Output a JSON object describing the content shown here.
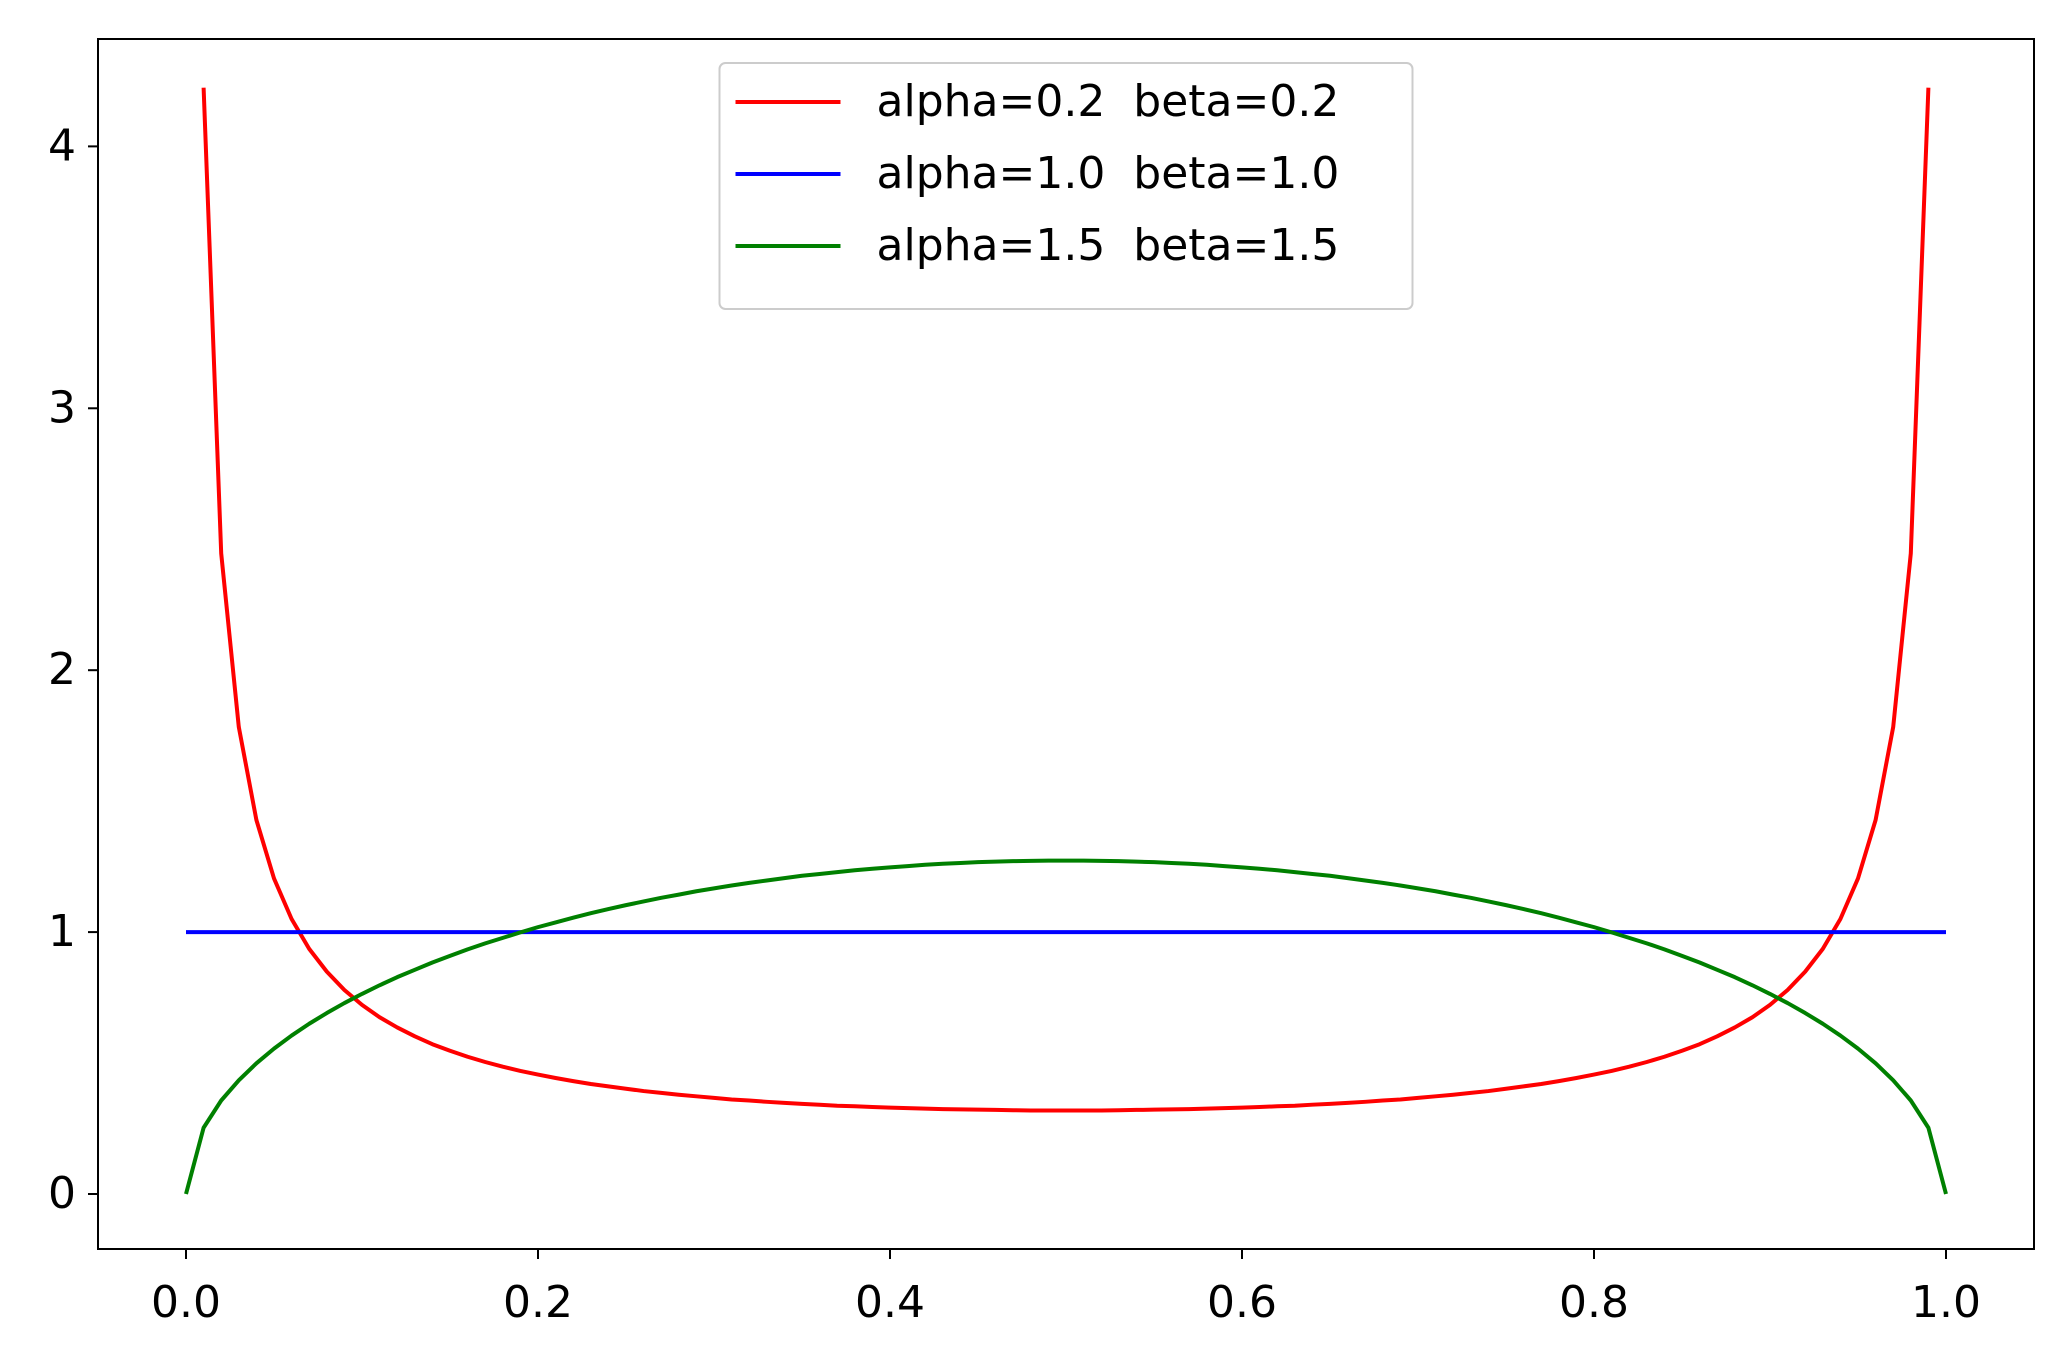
{
  "chart_data": {
    "type": "line",
    "x": [
      0,
      0.01,
      0.02,
      0.03,
      0.04,
      0.05,
      0.06,
      0.07,
      0.08,
      0.09,
      0.1,
      0.11,
      0.12,
      0.13,
      0.14,
      0.15,
      0.16,
      0.17,
      0.18,
      0.19,
      0.2,
      0.21,
      0.22,
      0.23,
      0.24,
      0.25,
      0.26,
      0.27,
      0.28,
      0.29,
      0.3,
      0.31,
      0.32,
      0.33,
      0.34,
      0.35,
      0.36,
      0.37,
      0.38,
      0.39,
      0.4,
      0.41,
      0.42,
      0.43,
      0.44,
      0.45,
      0.46,
      0.47,
      0.48,
      0.49,
      0.5,
      0.51,
      0.52,
      0.53,
      0.54,
      0.55,
      0.56,
      0.57,
      0.58,
      0.59,
      0.6,
      0.61,
      0.62,
      0.63,
      0.64,
      0.65,
      0.66,
      0.67,
      0.68,
      0.69,
      0.7,
      0.71,
      0.72,
      0.73,
      0.74,
      0.75,
      0.76,
      0.77,
      0.78,
      0.79,
      0.8,
      0.81,
      0.82,
      0.83,
      0.84,
      0.85,
      0.86,
      0.87,
      0.88,
      0.89,
      0.9,
      0.91,
      0.92,
      0.93,
      0.94,
      0.95,
      0.96,
      0.97,
      0.98,
      0.99,
      1
    ],
    "series": [
      {
        "name": "alpha=0.2  beta=0.2",
        "color": "#ff0000",
        "values": [
          null,
          4.224,
          2.446,
          1.783,
          1.428,
          1.205,
          1.05,
          0.936,
          0.849,
          0.779,
          0.722,
          0.675,
          0.636,
          0.602,
          0.572,
          0.547,
          0.524,
          0.504,
          0.486,
          0.47,
          0.456,
          0.443,
          0.431,
          0.42,
          0.411,
          0.402,
          0.393,
          0.386,
          0.379,
          0.373,
          0.367,
          0.361,
          0.357,
          0.352,
          0.348,
          0.344,
          0.341,
          0.337,
          0.335,
          0.332,
          0.33,
          0.328,
          0.326,
          0.324,
          0.323,
          0.322,
          0.321,
          0.32,
          0.319,
          0.319,
          0.319,
          0.319,
          0.319,
          0.32,
          0.321,
          0.322,
          0.323,
          0.324,
          0.326,
          0.328,
          0.33,
          0.332,
          0.335,
          0.337,
          0.341,
          0.344,
          0.348,
          0.352,
          0.357,
          0.361,
          0.367,
          0.373,
          0.379,
          0.386,
          0.393,
          0.402,
          0.411,
          0.42,
          0.431,
          0.443,
          0.456,
          0.47,
          0.486,
          0.504,
          0.524,
          0.547,
          0.572,
          0.602,
          0.636,
          0.675,
          0.722,
          0.779,
          0.849,
          0.936,
          1.05,
          1.205,
          1.428,
          1.783,
          2.446,
          4.224,
          null
        ]
      },
      {
        "name": "alpha=1.0  beta=1.0",
        "color": "#0000ff",
        "values": [
          1,
          1,
          1,
          1,
          1,
          1,
          1,
          1,
          1,
          1,
          1,
          1,
          1,
          1,
          1,
          1,
          1,
          1,
          1,
          1,
          1,
          1,
          1,
          1,
          1,
          1,
          1,
          1,
          1,
          1,
          1,
          1,
          1,
          1,
          1,
          1,
          1,
          1,
          1,
          1,
          1,
          1,
          1,
          1,
          1,
          1,
          1,
          1,
          1,
          1,
          1,
          1,
          1,
          1,
          1,
          1,
          1,
          1,
          1,
          1,
          1,
          1,
          1,
          1,
          1,
          1,
          1,
          1,
          1,
          1,
          1,
          1,
          1,
          1,
          1,
          1,
          1,
          1,
          1,
          1,
          1,
          1,
          1,
          1,
          1,
          1,
          1,
          1,
          1,
          1,
          1,
          1,
          1,
          1,
          1,
          1,
          1,
          1,
          1,
          1,
          1
        ]
      },
      {
        "name": "alpha=1.5  beta=1.5",
        "color": "#008000",
        "values": [
          0,
          0.253,
          0.357,
          0.434,
          0.499,
          0.555,
          0.605,
          0.65,
          0.691,
          0.729,
          0.764,
          0.797,
          0.828,
          0.856,
          0.884,
          0.909,
          0.934,
          0.957,
          0.978,
          0.999,
          1.019,
          1.037,
          1.055,
          1.072,
          1.088,
          1.103,
          1.117,
          1.131,
          1.143,
          1.156,
          1.167,
          1.178,
          1.188,
          1.197,
          1.206,
          1.215,
          1.222,
          1.229,
          1.236,
          1.242,
          1.247,
          1.252,
          1.257,
          1.261,
          1.264,
          1.267,
          1.269,
          1.271,
          1.272,
          1.273,
          1.273,
          1.273,
          1.272,
          1.271,
          1.269,
          1.267,
          1.264,
          1.261,
          1.257,
          1.252,
          1.247,
          1.242,
          1.236,
          1.229,
          1.222,
          1.215,
          1.206,
          1.197,
          1.188,
          1.178,
          1.167,
          1.156,
          1.143,
          1.131,
          1.117,
          1.103,
          1.088,
          1.072,
          1.055,
          1.037,
          1.019,
          0.999,
          0.978,
          0.957,
          0.934,
          0.909,
          0.884,
          0.856,
          0.828,
          0.797,
          0.764,
          0.729,
          0.691,
          0.65,
          0.605,
          0.555,
          0.499,
          0.434,
          0.357,
          0.253,
          0
        ]
      }
    ],
    "xlim": [
      -0.05,
      1.05
    ],
    "xticks": [
      {
        "value": 0,
        "label": "0.0"
      },
      0.2,
      0.4,
      0.6,
      0.8,
      {
        "value": 1,
        "label": "1.0"
      }
    ],
    "ylim": [
      -0.21,
      4.41
    ],
    "yticks": [
      0,
      1,
      2,
      3,
      4
    ],
    "grid": false,
    "legend": "upper center"
  }
}
